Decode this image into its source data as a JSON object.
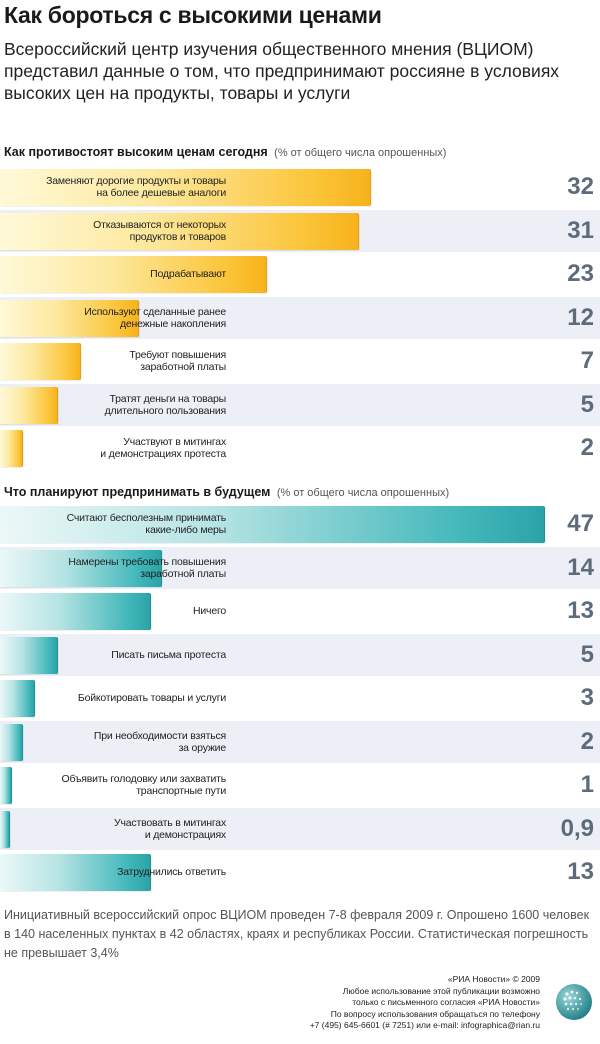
{
  "title": "Как бороться с высокими ценами",
  "subtitle": "Всероссийский центр изучения общественного мнения (ВЦИОМ) представил данные о том, что предпринимают россияне в условиях высоких цен на продукты, товары и услуги",
  "chart_data": [
    {
      "type": "bar",
      "orientation": "horizontal",
      "title": "Как противостоят высоким ценам сегодня",
      "subtitle": "(% от общего числа опрошенных)",
      "color": "#f9bb2a",
      "categories": [
        "Заменяют дорогие продукты и товары\nна более дешевые аналоги",
        "Отказываются от некоторых\nпродуктов и товаров",
        "Подрабатывают",
        "Используют сделанные ранее\nденежные накопления",
        "Требуют повышения\nзаработной платы",
        "Тратят деньги на товары\nдлительного пользования",
        "Участвуют в митингах\nи демонстрациях протеста"
      ],
      "values": [
        32,
        31,
        23,
        12,
        7,
        5,
        2
      ],
      "value_labels": [
        "32",
        "31",
        "23",
        "12",
        "7",
        "5",
        "2"
      ]
    },
    {
      "type": "bar",
      "orientation": "horizontal",
      "title": "Что планируют предпринимать в будущем",
      "subtitle": "(% от общего числа опрошенных)",
      "color": "#34adb0",
      "categories": [
        "Считают бесполезным принимать\nкакие-либо меры",
        "Намерены требовать повышения\nзаработной платы",
        "Ничего",
        "Писать письма протеста",
        "Бойкотировать товары и услуги",
        "При необходимости взяться\nза оружие",
        "Объявить голодовку или захватить\nтранспортные пути",
        "Участвовать в митингах\nи демонстрациях",
        "Затруднились ответить"
      ],
      "values": [
        47,
        14,
        13,
        5,
        3,
        2,
        1,
        0.9,
        13
      ],
      "value_labels": [
        "47",
        "14",
        "13",
        "5",
        "3",
        "2",
        "1",
        "0,9",
        "13"
      ]
    }
  ],
  "footnote": "Инициативный всероссийский опрос ВЦИОМ проведен 7-8 февраля 2009 г. Опрошено 1600 человек в 140 населенных пунктах в 42 областях, краях и республиках России. Статистическая погрешность не превышает 3,4%",
  "credits": [
    "«РИА Новости» © 2009",
    "Любое использование этой публикации возможно",
    "только с письменного согласия «РИА Новости»",
    "По вопросу использования обращаться по телефону",
    "+7 (495) 645-6601 (# 7251) или e-mail: infographica@rian.ru"
  ],
  "colors": {
    "yellow_bar": "#f9bb2a",
    "teal_bar": "#34adb0",
    "row_stripe": "#eceff5",
    "value_text": "#5d6b7a"
  },
  "logo_icon": "ria-novosti-globe-icon"
}
